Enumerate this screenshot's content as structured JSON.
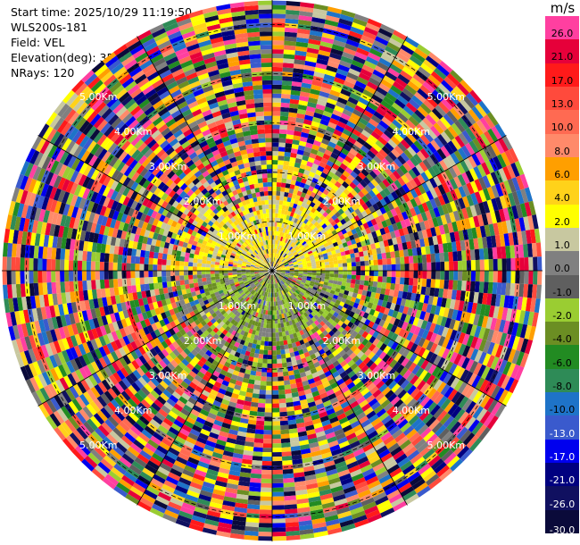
{
  "header": {
    "start_time": "Start time: 2025/10/29 11:19:50",
    "station": "WLS200s-181",
    "field": "Field: VEL",
    "elevation": "Elevation(deg): 35.00",
    "nrays": "NRays: 120"
  },
  "colorbar": {
    "unit": "m/s",
    "levels": [
      {
        "label": "26.0",
        "color": "#ff3fa0"
      },
      {
        "label": "21.0",
        "color": "#e6003a"
      },
      {
        "label": "17.0",
        "color": "#ff1a1a"
      },
      {
        "label": "13.0",
        "color": "#ff4a3c"
      },
      {
        "label": "10.0",
        "color": "#ff6a52"
      },
      {
        "label": "8.0",
        "color": "#ff8a6a"
      },
      {
        "label": "6.0",
        "color": "#ff9f00"
      },
      {
        "label": "4.0",
        "color": "#ffd21a"
      },
      {
        "label": "2.0",
        "color": "#ffff00"
      },
      {
        "label": "1.0",
        "color": "#c8c8a0"
      },
      {
        "label": "0.0",
        "color": "#808080"
      },
      {
        "label": "-1.0",
        "color": "#5f5f5f"
      },
      {
        "label": "-2.0",
        "color": "#9acd32"
      },
      {
        "label": "-4.0",
        "color": "#6b8e23"
      },
      {
        "label": "-6.0",
        "color": "#228b22"
      },
      {
        "label": "-8.0",
        "color": "#2e8b57"
      },
      {
        "label": "-10.0",
        "color": "#1e73c8"
      },
      {
        "label": "-13.0",
        "color": "#3a5acd"
      },
      {
        "label": "-17.0",
        "color": "#0000ee"
      },
      {
        "label": "-21.0",
        "color": "#000080"
      },
      {
        "label": "-26.0",
        "color": "#101060"
      },
      {
        "label": "-30.0",
        "color": "#0a0a3a"
      }
    ]
  },
  "chart_data": {
    "type": "heatmap",
    "projection": "polar PPI",
    "field": "VEL",
    "unit": "m/s",
    "nrays": 120,
    "range_rings_km": [
      1.0,
      2.0,
      3.0,
      4.0,
      5.0
    ],
    "ring_labels": [
      "1.00Km",
      "2.00Km",
      "3.00Km",
      "4.00Km",
      "5.00Km"
    ],
    "max_range_km": 5.5,
    "color_levels": [
      26.0,
      21.0,
      17.0,
      13.0,
      10.0,
      8.0,
      6.0,
      4.0,
      2.0,
      1.0,
      0.0,
      -1.0,
      -2.0,
      -4.0,
      -6.0,
      -8.0,
      -10.0,
      -13.0,
      -17.0,
      -21.0,
      -26.0,
      -30.0
    ],
    "pattern": {
      "inner_north_km": 1.5,
      "inner_north_dominant": [
        "2.0",
        "4.0",
        "1.0"
      ],
      "inner_south_dominant": [
        "-2.0",
        "-4.0",
        "0.0"
      ],
      "outer": "noisy full-range velocities"
    }
  }
}
